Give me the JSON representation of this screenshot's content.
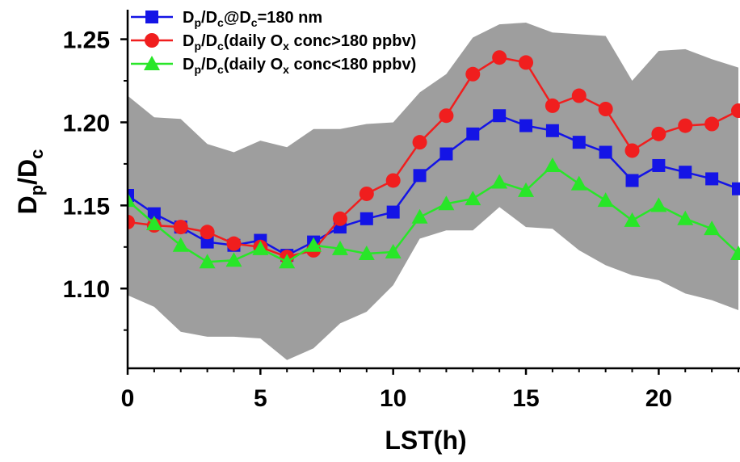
{
  "chart_data": {
    "type": "line",
    "title": "",
    "xlabel": "LST(h)",
    "ylabel": {
      "main": "D",
      "sub1": "p",
      "sep": "/D",
      "sub2": "c"
    },
    "xlim": [
      0,
      23
    ],
    "ylim": [
      1.052,
      1.26
    ],
    "xticks": [
      0,
      5,
      10,
      15,
      20
    ],
    "yticks": [
      1.1,
      1.15,
      1.2,
      1.25
    ],
    "ytick_labels": [
      "1.10",
      "1.15",
      "1.20",
      "1.25"
    ],
    "grid": false,
    "legend_position": "top-left",
    "x": [
      0,
      1,
      2,
      3,
      4,
      5,
      6,
      7,
      8,
      9,
      10,
      11,
      12,
      13,
      14,
      15,
      16,
      17,
      18,
      19,
      20,
      21,
      22,
      23
    ],
    "band": {
      "color": "#9e9e9e",
      "upper": [
        1.216,
        1.203,
        1.202,
        1.187,
        1.182,
        1.189,
        1.185,
        1.196,
        1.196,
        1.199,
        1.2,
        1.218,
        1.229,
        1.251,
        1.259,
        1.26,
        1.254,
        1.253,
        1.252,
        1.225,
        1.243,
        1.244,
        1.238,
        1.233
      ],
      "lower": [
        1.096,
        1.089,
        1.074,
        1.071,
        1.071,
        1.07,
        1.057,
        1.064,
        1.079,
        1.086,
        1.102,
        1.13,
        1.135,
        1.135,
        1.149,
        1.137,
        1.136,
        1.123,
        1.114,
        1.108,
        1.105,
        1.097,
        1.093,
        1.087
      ]
    },
    "series": [
      {
        "name_parts": [
          "D",
          "p",
          "/D",
          "c",
          "@D",
          "c",
          "=180 nm"
        ],
        "color": "#1414e6",
        "marker": "square",
        "values": [
          1.156,
          1.145,
          1.137,
          1.128,
          1.126,
          1.129,
          1.12,
          1.128,
          1.137,
          1.142,
          1.146,
          1.168,
          1.181,
          1.193,
          1.204,
          1.198,
          1.195,
          1.188,
          1.182,
          1.165,
          1.174,
          1.17,
          1.166,
          1.16
        ]
      },
      {
        "name_parts": [
          "D",
          "p",
          "/D",
          "c",
          "(daily O",
          "x",
          " conc>180 ppbv)"
        ],
        "color": "#f01e1e",
        "marker": "circle",
        "values": [
          1.14,
          1.138,
          1.137,
          1.134,
          1.127,
          1.125,
          1.119,
          1.123,
          1.142,
          1.157,
          1.165,
          1.188,
          1.204,
          1.229,
          1.239,
          1.236,
          1.21,
          1.216,
          1.208,
          1.183,
          1.193,
          1.198,
          1.199,
          1.207
        ]
      },
      {
        "name_parts": [
          "D",
          "p",
          "/D",
          "c",
          "(daily O",
          "x",
          " conc<180 ppbv)"
        ],
        "color": "#28e628",
        "marker": "triangle",
        "values": [
          1.153,
          1.139,
          1.126,
          1.116,
          1.117,
          1.124,
          1.116,
          1.126,
          1.124,
          1.121,
          1.122,
          1.143,
          1.151,
          1.154,
          1.164,
          1.159,
          1.174,
          1.163,
          1.153,
          1.141,
          1.15,
          1.142,
          1.136,
          1.121
        ]
      }
    ]
  }
}
